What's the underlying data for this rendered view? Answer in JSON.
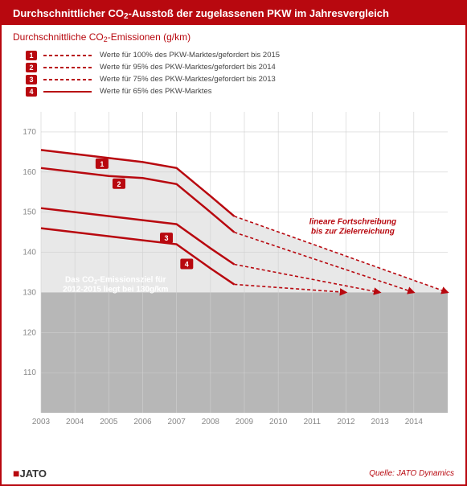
{
  "title_pre": "Durchschnittlicher CO",
  "title_sub": "2",
  "title_post": "-Ausstoß der zugelassenen PKW im Jahresvergleich",
  "subtitle_pre": "Durchschnittliche CO",
  "subtitle_sub": "2",
  "subtitle_post": "-Emissionen (g/km)",
  "legend": [
    {
      "n": "1",
      "label": "Werte für 100% des PKW-Marktes/gefordert bis 2015",
      "dash": true
    },
    {
      "n": "2",
      "label": "Werte für 95% des PKW-Marktes/gefordert bis 2014",
      "dash": true
    },
    {
      "n": "3",
      "label": "Werte für 75% des PKW-Marktes/gefordert bis 2013",
      "dash": true
    },
    {
      "n": "4",
      "label": "Werte für 65% des PKW-Marktes",
      "dash": false
    }
  ],
  "chart": {
    "type": "line",
    "ylim": [
      100,
      175
    ],
    "xlim": [
      2003,
      2015
    ],
    "yticks": [
      110,
      120,
      130,
      140,
      150,
      160,
      170
    ],
    "xticks": [
      2003,
      2004,
      2005,
      2006,
      2007,
      2008,
      2009,
      2010,
      2011,
      2012,
      2013,
      2014
    ],
    "target_y": 130,
    "series": [
      {
        "id": 1,
        "color": "#b8080f",
        "w": 2.5,
        "pts": [
          [
            2003,
            165.5
          ],
          [
            2004,
            164.5
          ],
          [
            2005,
            163.5
          ],
          [
            2006,
            162.5
          ],
          [
            2007,
            161
          ],
          [
            2008,
            154
          ],
          [
            2008.7,
            149
          ]
        ],
        "proj_end": [
          2015,
          130
        ]
      },
      {
        "id": 2,
        "color": "#b8080f",
        "w": 2.5,
        "pts": [
          [
            2003,
            161
          ],
          [
            2004,
            160
          ],
          [
            2005,
            159
          ],
          [
            2006,
            158.5
          ],
          [
            2007,
            157
          ],
          [
            2008,
            150
          ],
          [
            2008.7,
            145
          ]
        ],
        "proj_end": [
          2014,
          130
        ]
      },
      {
        "id": 3,
        "color": "#b8080f",
        "w": 2.5,
        "pts": [
          [
            2003,
            151
          ],
          [
            2004,
            150
          ],
          [
            2005,
            149
          ],
          [
            2006,
            148
          ],
          [
            2007,
            147
          ],
          [
            2008,
            141
          ],
          [
            2008.7,
            137
          ]
        ],
        "proj_end": [
          2013,
          130
        ]
      },
      {
        "id": 4,
        "color": "#b8080f",
        "w": 2.5,
        "pts": [
          [
            2003,
            146
          ],
          [
            2004,
            145
          ],
          [
            2005,
            144
          ],
          [
            2006,
            143
          ],
          [
            2007,
            142
          ],
          [
            2008,
            136
          ],
          [
            2008.7,
            132
          ]
        ],
        "proj_end": [
          2012,
          130
        ]
      }
    ],
    "upper_fill": "#e8e8e8",
    "lower_fill": "#b7b7b7",
    "bg": "#ffffff",
    "grid": "#d0d0d0",
    "axis_font": 10,
    "axis_color": "#888",
    "ann1_l1": "Das CO",
    "ann1_sub": "2",
    "ann1_l1b": "-Emissionsziel für",
    "ann1_l2": "2012-2015 liegt bei 130g/km",
    "ann2_l1": "lineare Fortschreibung",
    "ann2_l2": "bis zur Zielerreichung",
    "badges": [
      [
        2004.8,
        162
      ],
      [
        2005.3,
        157
      ],
      [
        2006.7,
        143.5
      ],
      [
        2007.3,
        137
      ]
    ]
  },
  "logo": "JATO",
  "source": "Quelle: JATO Dynamics"
}
